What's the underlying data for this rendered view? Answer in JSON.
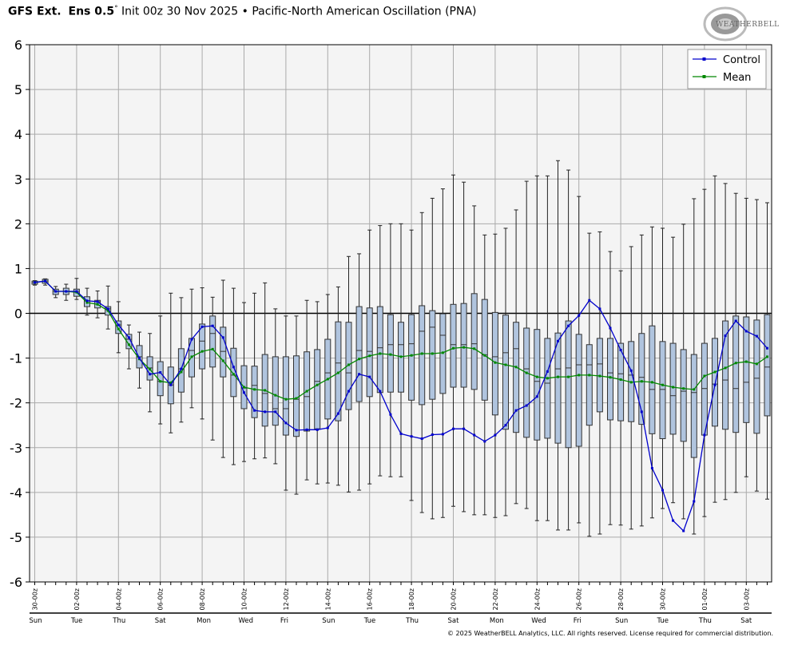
{
  "header": {
    "model": "GFS Ext.",
    "ens": "Ens 0.5",
    "degree": "°",
    "init": "Init 00z 30 Nov 2025",
    "separator": "•",
    "index": "Pacific-North American Oscillation (PNA)"
  },
  "logo": {
    "text": "WEATHERBELL"
  },
  "footer": {
    "copyright": "© 2025 WeatherBELL Analytics, LLC. All rights reserved. License required for commercial distribution."
  },
  "colors": {
    "control": "#0000cc",
    "mean": "#008800",
    "box_fill": "#b0c4de",
    "box_stroke": "#333333",
    "plot_bg": "#f4f4f4",
    "grid": "#aaaaaa"
  },
  "chart_data": {
    "type": "box",
    "title": "",
    "ylim": [
      -6,
      6
    ],
    "yticks": [
      6,
      5,
      4,
      3,
      2,
      1,
      0,
      -1,
      -2,
      -3,
      -4,
      -5,
      -6
    ],
    "grid": true,
    "legend_position": "top-right",
    "x_step_hours": 12,
    "x_date_labels": [
      "30-00z",
      "02-00z",
      "04-00z",
      "06-00z",
      "08-00z",
      "10-00z",
      "12-00z",
      "14-00z",
      "16-00z",
      "18-00z",
      "20-00z",
      "22-00z",
      "24-00z",
      "26-00z",
      "28-00z",
      "30-00z",
      "01-00z",
      "03-00z"
    ],
    "x_day_labels": [
      "Sun",
      "Tue",
      "Thu",
      "Sat",
      "Mon",
      "Wed",
      "Fri",
      "Sun",
      "Tue",
      "Thu",
      "Sat",
      "Mon",
      "Wed",
      "Fri",
      "Sun",
      "Tue",
      "Thu",
      "Sat"
    ],
    "series": [
      {
        "name": "Control",
        "values": [
          0.69,
          0.72,
          0.49,
          0.49,
          0.49,
          0.28,
          0.26,
          0.1,
          -0.26,
          -0.54,
          -1.0,
          -1.36,
          -1.32,
          -1.6,
          -1.24,
          -0.58,
          -0.3,
          -0.28,
          -0.54,
          -1.2,
          -1.77,
          -2.17,
          -2.2,
          -2.2,
          -2.45,
          -2.61,
          -2.6,
          -2.6,
          -2.56,
          -2.24,
          -1.74,
          -1.36,
          -1.42,
          -1.74,
          -2.26,
          -2.69,
          -2.75,
          -2.8,
          -2.71,
          -2.7,
          -2.58,
          -2.58,
          -2.72,
          -2.86,
          -2.72,
          -2.5,
          -2.17,
          -2.06,
          -1.86,
          -1.3,
          -0.62,
          -0.28,
          -0.05,
          0.29,
          0.1,
          -0.33,
          -0.82,
          -1.28,
          -2.2,
          -3.46,
          -3.95,
          -4.63,
          -4.86,
          -4.2,
          -2.72,
          -1.6,
          -0.5,
          -0.17,
          -0.4,
          -0.51,
          -0.78
        ]
      },
      {
        "name": "Mean",
        "values": [
          0.69,
          0.72,
          0.49,
          0.49,
          0.47,
          0.24,
          0.2,
          0.06,
          -0.35,
          -0.7,
          -1.02,
          -1.25,
          -1.52,
          -1.55,
          -1.31,
          -0.97,
          -0.85,
          -0.8,
          -1.06,
          -1.36,
          -1.65,
          -1.7,
          -1.72,
          -1.83,
          -1.92,
          -1.9,
          -1.74,
          -1.6,
          -1.47,
          -1.33,
          -1.15,
          -1.02,
          -0.95,
          -0.9,
          -0.92,
          -0.97,
          -0.94,
          -0.9,
          -0.9,
          -0.88,
          -0.78,
          -0.76,
          -0.79,
          -0.94,
          -1.1,
          -1.15,
          -1.2,
          -1.33,
          -1.42,
          -1.45,
          -1.42,
          -1.42,
          -1.38,
          -1.38,
          -1.4,
          -1.43,
          -1.48,
          -1.54,
          -1.52,
          -1.54,
          -1.6,
          -1.65,
          -1.68,
          -1.7,
          -1.4,
          -1.31,
          -1.22,
          -1.11,
          -1.08,
          -1.13,
          -0.97
        ]
      }
    ],
    "boxes": {
      "max": [
        0.73,
        0.77,
        0.6,
        0.65,
        0.78,
        0.56,
        0.5,
        0.61,
        0.26,
        -0.26,
        -0.42,
        -0.45,
        -0.06,
        0.45,
        0.35,
        0.54,
        0.57,
        0.36,
        0.74,
        0.56,
        0.24,
        0.45,
        0.68,
        0.1,
        -0.06,
        -0.06,
        0.29,
        0.26,
        0.42,
        0.59,
        1.27,
        1.33,
        1.86,
        1.96,
        2.0,
        2.0,
        1.86,
        2.25,
        2.57,
        2.78,
        3.09,
        2.93,
        2.4,
        1.75,
        1.77,
        1.9,
        2.31,
        2.95,
        3.07,
        3.07,
        3.41,
        3.2,
        2.61,
        1.79,
        1.82,
        1.38,
        0.95,
        1.49,
        1.75,
        1.93,
        1.9,
        1.7,
        1.99,
        2.56,
        2.77,
        3.07,
        2.9,
        2.68,
        2.57,
        2.54,
        2.47
      ],
      "q3": [
        0.72,
        0.76,
        0.54,
        0.56,
        0.54,
        0.37,
        0.29,
        0.15,
        -0.17,
        -0.47,
        -0.72,
        -0.97,
        -1.08,
        -1.2,
        -0.79,
        -0.56,
        -0.24,
        -0.06,
        -0.31,
        -0.78,
        -1.17,
        -1.18,
        -0.92,
        -0.97,
        -0.97,
        -0.95,
        -0.86,
        -0.81,
        -0.58,
        -0.19,
        -0.2,
        0.15,
        0.12,
        0.15,
        -0.03,
        -0.2,
        -0.03,
        0.17,
        0.06,
        -0.01,
        0.2,
        0.22,
        0.44,
        0.31,
        0.02,
        -0.04,
        -0.2,
        -0.33,
        -0.36,
        -0.56,
        -0.44,
        -0.17,
        -0.47,
        -0.7,
        -0.56,
        -0.56,
        -0.67,
        -0.63,
        -0.45,
        -0.28,
        -0.63,
        -0.67,
        -0.81,
        -0.92,
        -0.67,
        -0.56,
        -0.17,
        -0.06,
        -0.08,
        -0.15,
        -0.03
      ],
      "median": [
        0.69,
        0.72,
        0.49,
        0.49,
        0.49,
        0.28,
        0.26,
        0.1,
        -0.26,
        -0.58,
        -0.97,
        -1.22,
        -1.52,
        -1.6,
        -1.24,
        -0.83,
        -0.62,
        -0.45,
        -0.85,
        -1.38,
        -1.67,
        -1.61,
        -1.79,
        -2.13,
        -2.13,
        -1.92,
        -1.86,
        -1.52,
        -1.33,
        -1.11,
        -1.33,
        -0.83,
        -0.85,
        -0.77,
        -0.7,
        -0.7,
        -0.68,
        -0.4,
        -0.31,
        -0.49,
        -0.7,
        -0.7,
        -0.68,
        -0.93,
        -0.97,
        -0.88,
        -0.79,
        -1.24,
        -1.52,
        -1.56,
        -1.24,
        -1.22,
        -1.15,
        -1.15,
        -1.13,
        -1.33,
        -1.35,
        -1.38,
        -1.43,
        -1.7,
        -1.7,
        -1.84,
        -1.74,
        -1.77,
        -1.68,
        -1.58,
        -1.49,
        -1.68,
        -1.54,
        -1.45,
        -1.2
      ],
      "q1": [
        0.65,
        0.67,
        0.42,
        0.42,
        0.38,
        0.15,
        0.12,
        -0.04,
        -0.45,
        -0.79,
        -1.22,
        -1.49,
        -1.84,
        -2.02,
        -1.76,
        -1.42,
        -1.24,
        -1.2,
        -1.42,
        -1.86,
        -2.13,
        -2.33,
        -2.52,
        -2.5,
        -2.72,
        -2.75,
        -2.63,
        -2.58,
        -2.36,
        -2.4,
        -2.15,
        -1.97,
        -1.86,
        -1.77,
        -1.76,
        -1.76,
        -1.94,
        -2.04,
        -1.92,
        -1.79,
        -1.65,
        -1.65,
        -1.7,
        -1.94,
        -2.27,
        -2.59,
        -2.66,
        -2.77,
        -2.83,
        -2.79,
        -2.9,
        -3.0,
        -2.97,
        -2.5,
        -2.2,
        -2.38,
        -2.4,
        -2.42,
        -2.48,
        -2.69,
        -2.8,
        -2.7,
        -2.86,
        -3.22,
        -2.72,
        -2.52,
        -2.59,
        -2.66,
        -2.44,
        -2.68,
        -2.29
      ],
      "min": [
        0.63,
        0.63,
        0.35,
        0.29,
        0.31,
        -0.04,
        -0.1,
        -0.35,
        -0.88,
        -1.24,
        -1.67,
        -2.2,
        -2.47,
        -2.67,
        -2.43,
        -2.11,
        -2.36,
        -2.83,
        -3.22,
        -3.38,
        -3.31,
        -3.25,
        -3.23,
        -3.36,
        -3.95,
        -4.04,
        -3.72,
        -3.81,
        -3.79,
        -3.84,
        -3.99,
        -3.95,
        -3.81,
        -3.63,
        -3.65,
        -3.65,
        -4.18,
        -4.45,
        -4.59,
        -4.56,
        -4.31,
        -4.43,
        -4.5,
        -4.5,
        -4.56,
        -4.52,
        -4.25,
        -4.36,
        -4.63,
        -4.63,
        -4.84,
        -4.84,
        -4.68,
        -4.98,
        -4.93,
        -4.72,
        -4.73,
        -4.82,
        -4.75,
        -4.57,
        -4.36,
        -4.23,
        -4.59,
        -4.93,
        -4.54,
        -4.22,
        -4.16,
        -4.0,
        -3.65,
        -3.97,
        -4.15
      ]
    }
  }
}
